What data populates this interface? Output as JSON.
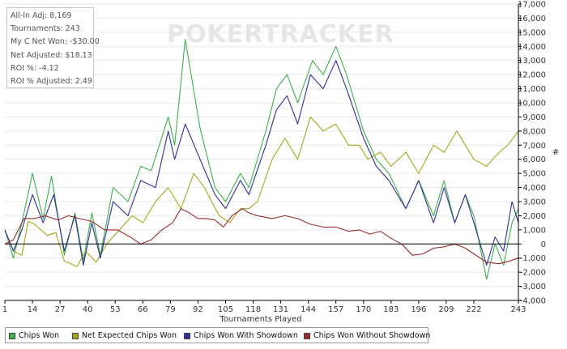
{
  "stats": [
    "All-In Adj: 8,169",
    "Tournaments: 243",
    "My C Net Won: -$30.00",
    "Net Adjusted: $18.13",
    "ROI %: -4.12",
    "ROI % Adjusted: 2.49"
  ],
  "watermark": "POKERTRACKER",
  "colors": {
    "chips_won": "#3db04a",
    "net_expected": "#a7a71a",
    "with_showdown": "#2f2f9a",
    "without_showdown": "#9a2b2b",
    "grid": "#e8e8e8",
    "axis": "#000000"
  },
  "legend": [
    {
      "label": "Chips Won",
      "color": "#3db04a"
    },
    {
      "label": "Net Expected Chips Won",
      "color": "#a7a71a"
    },
    {
      "label": "Chips Won With Showdown",
      "color": "#2f2f9a"
    },
    {
      "label": "Chips Won Without Showdown",
      "color": "#9a2b2b"
    }
  ],
  "chart_data": {
    "type": "line",
    "xlabel": "Tournaments Played",
    "ylabel": "#",
    "xlim": [
      1,
      243
    ],
    "ylim": [
      -4000,
      17000
    ],
    "x_ticks": [
      1,
      14,
      27,
      40,
      53,
      66,
      79,
      92,
      105,
      118,
      131,
      144,
      157,
      170,
      183,
      196,
      209,
      222,
      243
    ],
    "y_ticks": [
      -4000,
      -3000,
      -2000,
      -1000,
      0,
      1000,
      2000,
      3000,
      4000,
      5000,
      6000,
      7000,
      8000,
      9000,
      10000,
      11000,
      12000,
      13000,
      14000,
      15000,
      16000,
      17000
    ],
    "y_tick_labels": [
      "-4,000",
      "-3,000",
      "-2,000",
      "-1,000",
      "0",
      "1,000",
      "2,000",
      "3,000",
      "4,000",
      "5,000",
      "6,000",
      "7,000",
      "8,000",
      "9,000",
      "10,000",
      "11,000",
      "12,000",
      "13,000",
      "14,000",
      "15,000",
      "16,000",
      "17,000"
    ],
    "grid": true,
    "series": [
      {
        "name": "Chips Won",
        "color": "#3db04a",
        "points": [
          [
            1,
            1000
          ],
          [
            5,
            -1000
          ],
          [
            9,
            1500
          ],
          [
            14,
            5000
          ],
          [
            19,
            1800
          ],
          [
            23,
            4800
          ],
          [
            29,
            -800
          ],
          [
            34,
            2200
          ],
          [
            38,
            -1200
          ],
          [
            42,
            2200
          ],
          [
            46,
            -800
          ],
          [
            52,
            4000
          ],
          [
            59,
            3000
          ],
          [
            65,
            5500
          ],
          [
            70,
            5200
          ],
          [
            78,
            9000
          ],
          [
            81,
            7000
          ],
          [
            86,
            14500
          ],
          [
            93,
            8200
          ],
          [
            100,
            4000
          ],
          [
            105,
            3000
          ],
          [
            112,
            5000
          ],
          [
            116,
            4000
          ],
          [
            124,
            8000
          ],
          [
            129,
            11000
          ],
          [
            134,
            12000
          ],
          [
            139,
            10000
          ],
          [
            146,
            13000
          ],
          [
            151,
            12000
          ],
          [
            157,
            14000
          ],
          [
            162,
            12000
          ],
          [
            170,
            8000
          ],
          [
            176,
            6000
          ],
          [
            182,
            5000
          ],
          [
            190,
            2500
          ],
          [
            196,
            4500
          ],
          [
            203,
            2000
          ],
          [
            208,
            4500
          ],
          [
            213,
            1500
          ],
          [
            218,
            3500
          ],
          [
            222,
            2000
          ],
          [
            228,
            -2500
          ],
          [
            232,
            0
          ],
          [
            236,
            -1500
          ],
          [
            240,
            1500
          ],
          [
            243,
            2500
          ]
        ]
      },
      {
        "name": "Net Expected Chips Won",
        "color": "#a7a71a",
        "points": [
          [
            1,
            1000
          ],
          [
            5,
            -500
          ],
          [
            9,
            -800
          ],
          [
            12,
            1600
          ],
          [
            15,
            1400
          ],
          [
            21,
            600
          ],
          [
            25,
            800
          ],
          [
            29,
            -1200
          ],
          [
            35,
            -1600
          ],
          [
            39,
            -500
          ],
          [
            44,
            -1300
          ],
          [
            49,
            0
          ],
          [
            55,
            1000
          ],
          [
            61,
            2000
          ],
          [
            66,
            1500
          ],
          [
            72,
            3000
          ],
          [
            78,
            4000
          ],
          [
            84,
            2500
          ],
          [
            90,
            5000
          ],
          [
            95,
            4000
          ],
          [
            102,
            2000
          ],
          [
            107,
            1500
          ],
          [
            112,
            2500
          ],
          [
            116,
            2500
          ],
          [
            120,
            3000
          ],
          [
            127,
            6000
          ],
          [
            133,
            7500
          ],
          [
            139,
            6000
          ],
          [
            145,
            9000
          ],
          [
            151,
            8000
          ],
          [
            157,
            8500
          ],
          [
            163,
            7000
          ],
          [
            168,
            7000
          ],
          [
            172,
            6000
          ],
          [
            178,
            6500
          ],
          [
            183,
            5500
          ],
          [
            190,
            6500
          ],
          [
            196,
            5000
          ],
          [
            203,
            7000
          ],
          [
            208,
            6500
          ],
          [
            214,
            8000
          ],
          [
            218,
            7000
          ],
          [
            222,
            6000
          ],
          [
            228,
            5500
          ],
          [
            234,
            6500
          ],
          [
            238,
            7000
          ],
          [
            243,
            8000
          ]
        ]
      },
      {
        "name": "Chips Won With Showdown",
        "color": "#2f2f9a",
        "points": [
          [
            1,
            1000
          ],
          [
            5,
            -500
          ],
          [
            9,
            1000
          ],
          [
            14,
            3500
          ],
          [
            19,
            1500
          ],
          [
            24,
            3500
          ],
          [
            29,
            -500
          ],
          [
            34,
            2000
          ],
          [
            38,
            -1500
          ],
          [
            42,
            1500
          ],
          [
            46,
            -1000
          ],
          [
            52,
            3000
          ],
          [
            59,
            2000
          ],
          [
            65,
            4500
          ],
          [
            72,
            4000
          ],
          [
            78,
            8000
          ],
          [
            81,
            6000
          ],
          [
            86,
            8500
          ],
          [
            93,
            6000
          ],
          [
            100,
            3500
          ],
          [
            105,
            2500
          ],
          [
            112,
            4500
          ],
          [
            116,
            3500
          ],
          [
            124,
            7000
          ],
          [
            129,
            9500
          ],
          [
            134,
            10500
          ],
          [
            139,
            8500
          ],
          [
            145,
            12000
          ],
          [
            151,
            11000
          ],
          [
            157,
            13000
          ],
          [
            162,
            11000
          ],
          [
            170,
            7500
          ],
          [
            176,
            5500
          ],
          [
            182,
            4500
          ],
          [
            190,
            2500
          ],
          [
            196,
            4500
          ],
          [
            203,
            1500
          ],
          [
            208,
            4000
          ],
          [
            213,
            1500
          ],
          [
            218,
            3500
          ],
          [
            222,
            1500
          ],
          [
            228,
            -1500
          ],
          [
            232,
            500
          ],
          [
            236,
            -500
          ],
          [
            240,
            3000
          ],
          [
            243,
            1500
          ]
        ]
      },
      {
        "name": "Chips Won Without Showdown",
        "color": "#9a2b2b",
        "points": [
          [
            1,
            0
          ],
          [
            5,
            300
          ],
          [
            10,
            1800
          ],
          [
            15,
            1800
          ],
          [
            20,
            2000
          ],
          [
            26,
            1700
          ],
          [
            31,
            2000
          ],
          [
            36,
            1800
          ],
          [
            42,
            1600
          ],
          [
            48,
            1000
          ],
          [
            54,
            1000
          ],
          [
            60,
            500
          ],
          [
            65,
            0
          ],
          [
            70,
            300
          ],
          [
            75,
            1000
          ],
          [
            80,
            1500
          ],
          [
            84,
            2500
          ],
          [
            88,
            2200
          ],
          [
            92,
            1800
          ],
          [
            96,
            1800
          ],
          [
            100,
            1700
          ],
          [
            104,
            1200
          ],
          [
            108,
            2000
          ],
          [
            113,
            2500
          ],
          [
            116,
            2200
          ],
          [
            120,
            2000
          ],
          [
            127,
            1800
          ],
          [
            133,
            2000
          ],
          [
            139,
            1800
          ],
          [
            145,
            1400
          ],
          [
            151,
            1200
          ],
          [
            157,
            1200
          ],
          [
            163,
            900
          ],
          [
            168,
            1000
          ],
          [
            173,
            700
          ],
          [
            178,
            900
          ],
          [
            183,
            400
          ],
          [
            188,
            0
          ],
          [
            193,
            -800
          ],
          [
            198,
            -700
          ],
          [
            203,
            -300
          ],
          [
            208,
            -200
          ],
          [
            213,
            0
          ],
          [
            218,
            -300
          ],
          [
            222,
            -700
          ],
          [
            228,
            -1300
          ],
          [
            234,
            -1400
          ],
          [
            239,
            -1200
          ],
          [
            243,
            -1000
          ]
        ]
      }
    ]
  }
}
